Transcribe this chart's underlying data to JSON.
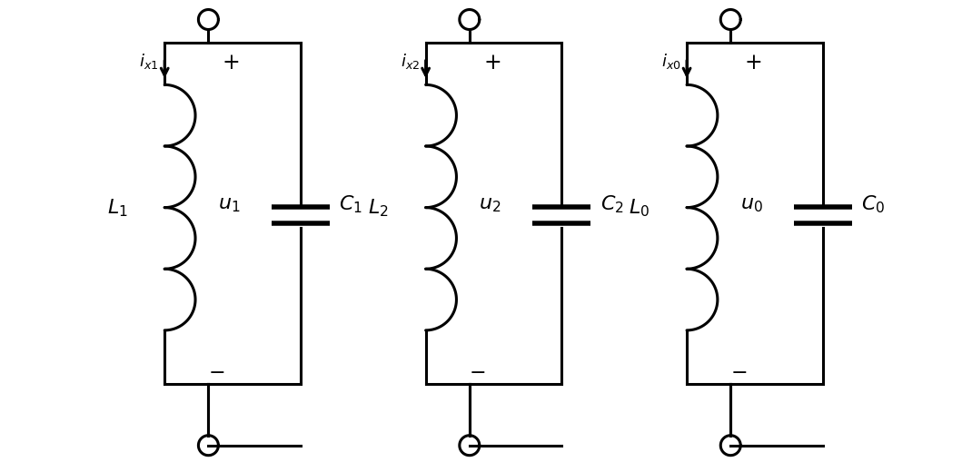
{
  "bg_color": "#ffffff",
  "line_color": "#000000",
  "line_width": 2.2,
  "circuits": [
    {
      "label_L": "$L_1$",
      "label_C": "$C_1$",
      "label_u": "$u_1$",
      "label_i": "$i_{x1}$",
      "subscript": "1"
    },
    {
      "label_L": "$L_2$",
      "label_C": "$C_2$",
      "label_u": "$u_2$",
      "label_i": "$i_{x2}$",
      "subscript": "2"
    },
    {
      "label_L": "$L_0$",
      "label_C": "$C_0$",
      "label_u": "$u_0$",
      "label_i": "$i_{x0}$",
      "subscript": "0"
    }
  ],
  "circuit_centers": [
    1.6,
    5.0,
    8.4
  ],
  "fig_width": 10.59,
  "fig_height": 5.1,
  "dpi": 100
}
